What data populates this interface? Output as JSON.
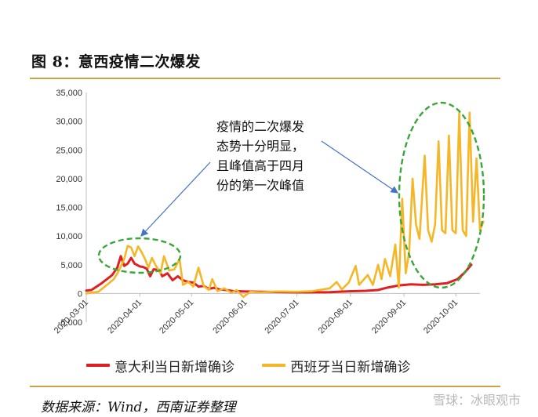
{
  "figure": {
    "title": "图 8：意西疫情二次爆发",
    "source": "数据来源：Wind，西南证券整理",
    "watermark": "雪球：冰眼观市"
  },
  "annotation": {
    "lines": [
      "疫情的二次爆发",
      "态势十分明显，",
      "且峰值高于四月",
      "份的第一次峰值"
    ]
  },
  "colors": {
    "italy": "#e02020",
    "spain": "#f5b727",
    "ellipse": "#3aa63a",
    "arrow": "#4472c4"
  },
  "chart_data": {
    "type": "line",
    "title": "",
    "xlabel": "",
    "ylabel": "",
    "ylim": [
      -5000,
      35000
    ],
    "yticks": [
      -5000,
      0,
      5000,
      10000,
      15000,
      20000,
      25000,
      30000,
      35000
    ],
    "ytick_labels": [
      "-5,000",
      "0",
      "5,000",
      "10,000",
      "15,000",
      "20,000",
      "25,000",
      "30,000",
      "35,000"
    ],
    "xlim": [
      "2020-03-01",
      "2020-10-15"
    ],
    "xticks": [
      "2020-03-01",
      "2020-04-01",
      "2020-05-01",
      "2020-06-01",
      "2020-07-01",
      "2020-08-01",
      "2020-09-01",
      "2020-10-01"
    ],
    "legend_position": "bottom",
    "grid": false,
    "series": [
      {
        "name": "意大利当日新增确诊",
        "color": "#e02020",
        "points": [
          [
            "2020-03-01",
            500
          ],
          [
            "2020-03-04",
            600
          ],
          [
            "2020-03-07",
            1200
          ],
          [
            "2020-03-10",
            1800
          ],
          [
            "2020-03-13",
            2500
          ],
          [
            "2020-03-16",
            3200
          ],
          [
            "2020-03-19",
            4500
          ],
          [
            "2020-03-21",
            6500
          ],
          [
            "2020-03-23",
            4800
          ],
          [
            "2020-03-25",
            5200
          ],
          [
            "2020-03-27",
            6200
          ],
          [
            "2020-03-29",
            5200
          ],
          [
            "2020-04-01",
            4700
          ],
          [
            "2020-04-03",
            4600
          ],
          [
            "2020-04-05",
            4300
          ],
          [
            "2020-04-07",
            3000
          ],
          [
            "2020-04-09",
            4200
          ],
          [
            "2020-04-12",
            4100
          ],
          [
            "2020-04-14",
            3000
          ],
          [
            "2020-04-17",
            3500
          ],
          [
            "2020-04-20",
            2300
          ],
          [
            "2020-04-23",
            3000
          ],
          [
            "2020-04-26",
            2300
          ],
          [
            "2020-04-29",
            2000
          ],
          [
            "2020-05-02",
            1900
          ],
          [
            "2020-05-05",
            1200
          ],
          [
            "2020-05-08",
            1300
          ],
          [
            "2020-05-11",
            800
          ],
          [
            "2020-05-14",
            1000
          ],
          [
            "2020-05-17",
            700
          ],
          [
            "2020-05-20",
            650
          ],
          [
            "2020-05-25",
            400
          ],
          [
            "2020-05-31",
            350
          ],
          [
            "2020-06-10",
            280
          ],
          [
            "2020-06-20",
            250
          ],
          [
            "2020-06-30",
            200
          ],
          [
            "2020-07-10",
            200
          ],
          [
            "2020-07-20",
            230
          ],
          [
            "2020-07-31",
            380
          ],
          [
            "2020-08-10",
            460
          ],
          [
            "2020-08-17",
            600
          ],
          [
            "2020-08-22",
            1000
          ],
          [
            "2020-08-29",
            1400
          ],
          [
            "2020-09-05",
            1600
          ],
          [
            "2020-09-12",
            1500
          ],
          [
            "2020-09-19",
            1600
          ],
          [
            "2020-09-26",
            1800
          ],
          [
            "2020-10-02",
            2500
          ],
          [
            "2020-10-06",
            3600
          ],
          [
            "2020-10-10",
            5000
          ]
        ]
      },
      {
        "name": "西班牙当日新增确诊",
        "color": "#f5b727",
        "points": [
          [
            "2020-03-01",
            0
          ],
          [
            "2020-03-08",
            300
          ],
          [
            "2020-03-13",
            1500
          ],
          [
            "2020-03-17",
            2500
          ],
          [
            "2020-03-20",
            4000
          ],
          [
            "2020-03-23",
            6000
          ],
          [
            "2020-03-25",
            8300
          ],
          [
            "2020-03-27",
            8000
          ],
          [
            "2020-03-29",
            6500
          ],
          [
            "2020-03-31",
            8200
          ],
          [
            "2020-04-02",
            7200
          ],
          [
            "2020-04-04",
            6000
          ],
          [
            "2020-04-06",
            4500
          ],
          [
            "2020-04-08",
            6200
          ],
          [
            "2020-04-10",
            5000
          ],
          [
            "2020-04-13",
            3500
          ],
          [
            "2020-04-15",
            6500
          ],
          [
            "2020-04-18",
            4000
          ],
          [
            "2020-04-21",
            4200
          ],
          [
            "2020-04-24",
            6000
          ],
          [
            "2020-04-26",
            1500
          ],
          [
            "2020-04-29",
            2000
          ],
          [
            "2020-05-02",
            1200
          ],
          [
            "2020-05-05",
            4500
          ],
          [
            "2020-05-08",
            1300
          ],
          [
            "2020-05-11",
            600
          ],
          [
            "2020-05-13",
            2500
          ],
          [
            "2020-05-16",
            400
          ],
          [
            "2020-05-20",
            900
          ],
          [
            "2020-05-24",
            100
          ],
          [
            "2020-05-27",
            600
          ],
          [
            "2020-05-31",
            -600
          ],
          [
            "2020-06-04",
            300
          ],
          [
            "2020-06-10",
            200
          ],
          [
            "2020-06-20",
            350
          ],
          [
            "2020-06-30",
            300
          ],
          [
            "2020-07-10",
            400
          ],
          [
            "2020-07-20",
            900
          ],
          [
            "2020-07-24",
            2000
          ],
          [
            "2020-07-27",
            700
          ],
          [
            "2020-07-31",
            1900
          ],
          [
            "2020-08-04",
            4800
          ],
          [
            "2020-08-06",
            1500
          ],
          [
            "2020-08-11",
            3200
          ],
          [
            "2020-08-14",
            1500
          ],
          [
            "2020-08-17",
            5000
          ],
          [
            "2020-08-19",
            2500
          ],
          [
            "2020-08-21",
            6000
          ],
          [
            "2020-08-24",
            3000
          ],
          [
            "2020-08-27",
            8500
          ],
          [
            "2020-08-29",
            1000
          ],
          [
            "2020-08-31",
            16500
          ],
          [
            "2020-09-02",
            3500
          ],
          [
            "2020-09-04",
            7200
          ],
          [
            "2020-09-06",
            20000
          ],
          [
            "2020-09-08",
            12000
          ],
          [
            "2020-09-10",
            9500
          ],
          [
            "2020-09-13",
            24000
          ],
          [
            "2020-09-15",
            11000
          ],
          [
            "2020-09-17",
            9000
          ],
          [
            "2020-09-19",
            12000
          ],
          [
            "2020-09-21",
            26500
          ],
          [
            "2020-09-23",
            11000
          ],
          [
            "2020-09-25",
            10500
          ],
          [
            "2020-09-27",
            27500
          ],
          [
            "2020-09-29",
            11000
          ],
          [
            "2020-10-01",
            10500
          ],
          [
            "2020-10-03",
            31500
          ],
          [
            "2020-10-05",
            11000
          ],
          [
            "2020-10-07",
            10000
          ],
          [
            "2020-10-09",
            31500
          ],
          [
            "2020-10-11",
            12500
          ],
          [
            "2020-10-13",
            23500
          ],
          [
            "2020-10-15",
            11000
          ],
          [
            "2020-10-17",
            12500
          ]
        ]
      }
    ]
  }
}
